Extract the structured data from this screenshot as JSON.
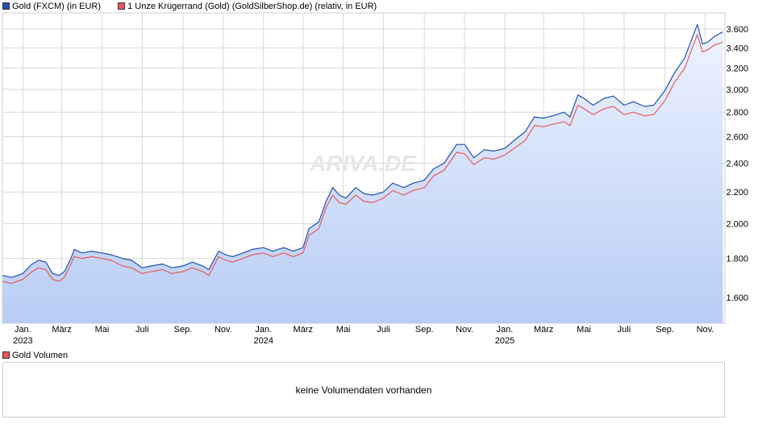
{
  "legend": {
    "series1_label": "Gold (FXCM) (in EUR)",
    "series2_label": "1 Unze Krügerrand (Gold) (GoldSilberShop.de) (relativ, in EUR)"
  },
  "watermark": "ARIVA.DE",
  "volume": {
    "label": "Gold Volumen",
    "message": "keine Volumendaten vorhanden"
  },
  "colors": {
    "gold_line": "#1f4fb5",
    "kruegerrand_line": "#e85a5a",
    "area_top": "#eef3ff",
    "area_bottom": "#b8cdf5",
    "grid": "#d9d9d9"
  },
  "chart_data": {
    "type": "line",
    "x_range": [
      "2022-12-01",
      "2025-12-01"
    ],
    "y_scale": "log",
    "ylim": [
      1480,
      3780
    ],
    "y_ticks": [
      "1.600",
      "1.800",
      "2.000",
      "2.200",
      "2.400",
      "2.600",
      "2.800",
      "3.000",
      "3.200",
      "3.400",
      "3.600"
    ],
    "y_tick_values": [
      1600,
      1800,
      2000,
      2200,
      2400,
      2600,
      2800,
      3000,
      3200,
      3400,
      3600
    ],
    "x_ticks": [
      {
        "label": "Jan.",
        "year": "2023",
        "date": "2023-01-01"
      },
      {
        "label": "März",
        "year": "",
        "date": "2023-03-01"
      },
      {
        "label": "Mai",
        "year": "",
        "date": "2023-05-01"
      },
      {
        "label": "Juli",
        "year": "",
        "date": "2023-07-01"
      },
      {
        "label": "Sep.",
        "year": "",
        "date": "2023-09-01"
      },
      {
        "label": "Nov.",
        "year": "",
        "date": "2023-11-01"
      },
      {
        "label": "Jan.",
        "year": "2024",
        "date": "2024-01-01"
      },
      {
        "label": "März",
        "year": "",
        "date": "2024-03-01"
      },
      {
        "label": "Mai",
        "year": "",
        "date": "2024-05-01"
      },
      {
        "label": "Juli",
        "year": "",
        "date": "2024-07-01"
      },
      {
        "label": "Sep.",
        "year": "",
        "date": "2024-09-01"
      },
      {
        "label": "Nov.",
        "year": "",
        "date": "2024-11-01"
      },
      {
        "label": "Jan.",
        "year": "2025",
        "date": "2025-01-01"
      },
      {
        "label": "März",
        "year": "",
        "date": "2025-03-01"
      },
      {
        "label": "Mai",
        "year": "",
        "date": "2025-05-01"
      },
      {
        "label": "Juli",
        "year": "",
        "date": "2025-07-01"
      },
      {
        "label": "Sep.",
        "year": "",
        "date": "2025-09-01"
      },
      {
        "label": "Nov.",
        "year": "",
        "date": "2025-11-01"
      }
    ],
    "grid": true,
    "legend_position": "top-left",
    "series": [
      {
        "name": "Gold (FXCM) (in EUR)",
        "points": [
          [
            "2022-12-01",
            1710
          ],
          [
            "2022-12-15",
            1700
          ],
          [
            "2023-01-01",
            1720
          ],
          [
            "2023-01-15",
            1770
          ],
          [
            "2023-01-25",
            1790
          ],
          [
            "2023-02-05",
            1780
          ],
          [
            "2023-02-15",
            1720
          ],
          [
            "2023-02-25",
            1710
          ],
          [
            "2023-03-05",
            1730
          ],
          [
            "2023-03-15",
            1800
          ],
          [
            "2023-03-20",
            1850
          ],
          [
            "2023-04-01",
            1830
          ],
          [
            "2023-04-15",
            1840
          ],
          [
            "2023-05-01",
            1830
          ],
          [
            "2023-05-15",
            1820
          ],
          [
            "2023-06-01",
            1800
          ],
          [
            "2023-06-15",
            1790
          ],
          [
            "2023-07-01",
            1750
          ],
          [
            "2023-07-15",
            1760
          ],
          [
            "2023-08-01",
            1770
          ],
          [
            "2023-08-15",
            1750
          ],
          [
            "2023-09-01",
            1760
          ],
          [
            "2023-09-15",
            1780
          ],
          [
            "2023-10-01",
            1760
          ],
          [
            "2023-10-10",
            1740
          ],
          [
            "2023-10-25",
            1840
          ],
          [
            "2023-11-05",
            1820
          ],
          [
            "2023-11-15",
            1810
          ],
          [
            "2023-12-01",
            1830
          ],
          [
            "2023-12-15",
            1850
          ],
          [
            "2024-01-01",
            1860
          ],
          [
            "2024-01-15",
            1840
          ],
          [
            "2024-02-01",
            1860
          ],
          [
            "2024-02-15",
            1840
          ],
          [
            "2024-03-01",
            1860
          ],
          [
            "2024-03-10",
            1970
          ],
          [
            "2024-03-25",
            2010
          ],
          [
            "2024-04-05",
            2140
          ],
          [
            "2024-04-15",
            2230
          ],
          [
            "2024-04-25",
            2180
          ],
          [
            "2024-05-05",
            2160
          ],
          [
            "2024-05-20",
            2230
          ],
          [
            "2024-06-01",
            2190
          ],
          [
            "2024-06-15",
            2180
          ],
          [
            "2024-07-01",
            2200
          ],
          [
            "2024-07-15",
            2260
          ],
          [
            "2024-08-01",
            2230
          ],
          [
            "2024-08-15",
            2260
          ],
          [
            "2024-09-01",
            2280
          ],
          [
            "2024-09-15",
            2360
          ],
          [
            "2024-10-01",
            2400
          ],
          [
            "2024-10-20",
            2540
          ],
          [
            "2024-11-01",
            2540
          ],
          [
            "2024-11-15",
            2440
          ],
          [
            "2024-12-01",
            2500
          ],
          [
            "2024-12-15",
            2490
          ],
          [
            "2025-01-01",
            2510
          ],
          [
            "2025-01-15",
            2570
          ],
          [
            "2025-02-01",
            2640
          ],
          [
            "2025-02-15",
            2760
          ],
          [
            "2025-03-01",
            2750
          ],
          [
            "2025-03-15",
            2770
          ],
          [
            "2025-04-01",
            2800
          ],
          [
            "2025-04-10",
            2760
          ],
          [
            "2025-04-22",
            2950
          ],
          [
            "2025-05-01",
            2920
          ],
          [
            "2025-05-15",
            2860
          ],
          [
            "2025-06-01",
            2920
          ],
          [
            "2025-06-15",
            2940
          ],
          [
            "2025-07-01",
            2860
          ],
          [
            "2025-07-15",
            2890
          ],
          [
            "2025-08-01",
            2850
          ],
          [
            "2025-08-15",
            2860
          ],
          [
            "2025-09-01",
            2990
          ],
          [
            "2025-09-15",
            3150
          ],
          [
            "2025-10-01",
            3300
          ],
          [
            "2025-10-20",
            3650
          ],
          [
            "2025-10-28",
            3440
          ],
          [
            "2025-11-05",
            3460
          ],
          [
            "2025-11-15",
            3520
          ],
          [
            "2025-11-28",
            3570
          ]
        ]
      },
      {
        "name": "1 Unze Krügerrand (Gold) (GoldSilberShop.de) (relativ, in EUR)",
        "points": [
          [
            "2022-12-01",
            1680
          ],
          [
            "2022-12-15",
            1670
          ],
          [
            "2023-01-01",
            1690
          ],
          [
            "2023-01-15",
            1730
          ],
          [
            "2023-01-25",
            1750
          ],
          [
            "2023-02-05",
            1740
          ],
          [
            "2023-02-15",
            1690
          ],
          [
            "2023-02-25",
            1680
          ],
          [
            "2023-03-05",
            1700
          ],
          [
            "2023-03-15",
            1770
          ],
          [
            "2023-03-20",
            1810
          ],
          [
            "2023-04-01",
            1800
          ],
          [
            "2023-04-15",
            1810
          ],
          [
            "2023-05-01",
            1800
          ],
          [
            "2023-05-15",
            1790
          ],
          [
            "2023-06-01",
            1760
          ],
          [
            "2023-06-15",
            1750
          ],
          [
            "2023-07-01",
            1720
          ],
          [
            "2023-07-15",
            1730
          ],
          [
            "2023-08-01",
            1740
          ],
          [
            "2023-08-15",
            1720
          ],
          [
            "2023-09-01",
            1730
          ],
          [
            "2023-09-15",
            1750
          ],
          [
            "2023-10-01",
            1730
          ],
          [
            "2023-10-10",
            1710
          ],
          [
            "2023-10-25",
            1810
          ],
          [
            "2023-11-05",
            1790
          ],
          [
            "2023-11-15",
            1780
          ],
          [
            "2023-12-01",
            1800
          ],
          [
            "2023-12-15",
            1820
          ],
          [
            "2024-01-01",
            1830
          ],
          [
            "2024-01-15",
            1810
          ],
          [
            "2024-02-01",
            1830
          ],
          [
            "2024-02-15",
            1810
          ],
          [
            "2024-03-01",
            1830
          ],
          [
            "2024-03-10",
            1930
          ],
          [
            "2024-03-25",
            1970
          ],
          [
            "2024-04-05",
            2100
          ],
          [
            "2024-04-15",
            2180
          ],
          [
            "2024-04-25",
            2130
          ],
          [
            "2024-05-05",
            2120
          ],
          [
            "2024-05-20",
            2180
          ],
          [
            "2024-06-01",
            2140
          ],
          [
            "2024-06-15",
            2130
          ],
          [
            "2024-07-01",
            2160
          ],
          [
            "2024-07-15",
            2210
          ],
          [
            "2024-08-01",
            2180
          ],
          [
            "2024-08-15",
            2210
          ],
          [
            "2024-09-01",
            2230
          ],
          [
            "2024-09-15",
            2310
          ],
          [
            "2024-10-01",
            2350
          ],
          [
            "2024-10-20",
            2480
          ],
          [
            "2024-11-01",
            2470
          ],
          [
            "2024-11-15",
            2390
          ],
          [
            "2024-12-01",
            2440
          ],
          [
            "2024-12-15",
            2430
          ],
          [
            "2025-01-01",
            2460
          ],
          [
            "2025-01-15",
            2510
          ],
          [
            "2025-02-01",
            2570
          ],
          [
            "2025-02-15",
            2690
          ],
          [
            "2025-03-01",
            2680
          ],
          [
            "2025-03-15",
            2700
          ],
          [
            "2025-04-01",
            2720
          ],
          [
            "2025-04-10",
            2690
          ],
          [
            "2025-04-22",
            2860
          ],
          [
            "2025-05-01",
            2830
          ],
          [
            "2025-05-15",
            2780
          ],
          [
            "2025-06-01",
            2830
          ],
          [
            "2025-06-15",
            2850
          ],
          [
            "2025-07-01",
            2780
          ],
          [
            "2025-07-15",
            2800
          ],
          [
            "2025-08-01",
            2770
          ],
          [
            "2025-08-15",
            2780
          ],
          [
            "2025-09-01",
            2900
          ],
          [
            "2025-09-15",
            3060
          ],
          [
            "2025-10-01",
            3200
          ],
          [
            "2025-10-20",
            3540
          ],
          [
            "2025-10-28",
            3360
          ],
          [
            "2025-11-05",
            3380
          ],
          [
            "2025-11-15",
            3430
          ],
          [
            "2025-11-28",
            3460
          ]
        ]
      }
    ]
  }
}
